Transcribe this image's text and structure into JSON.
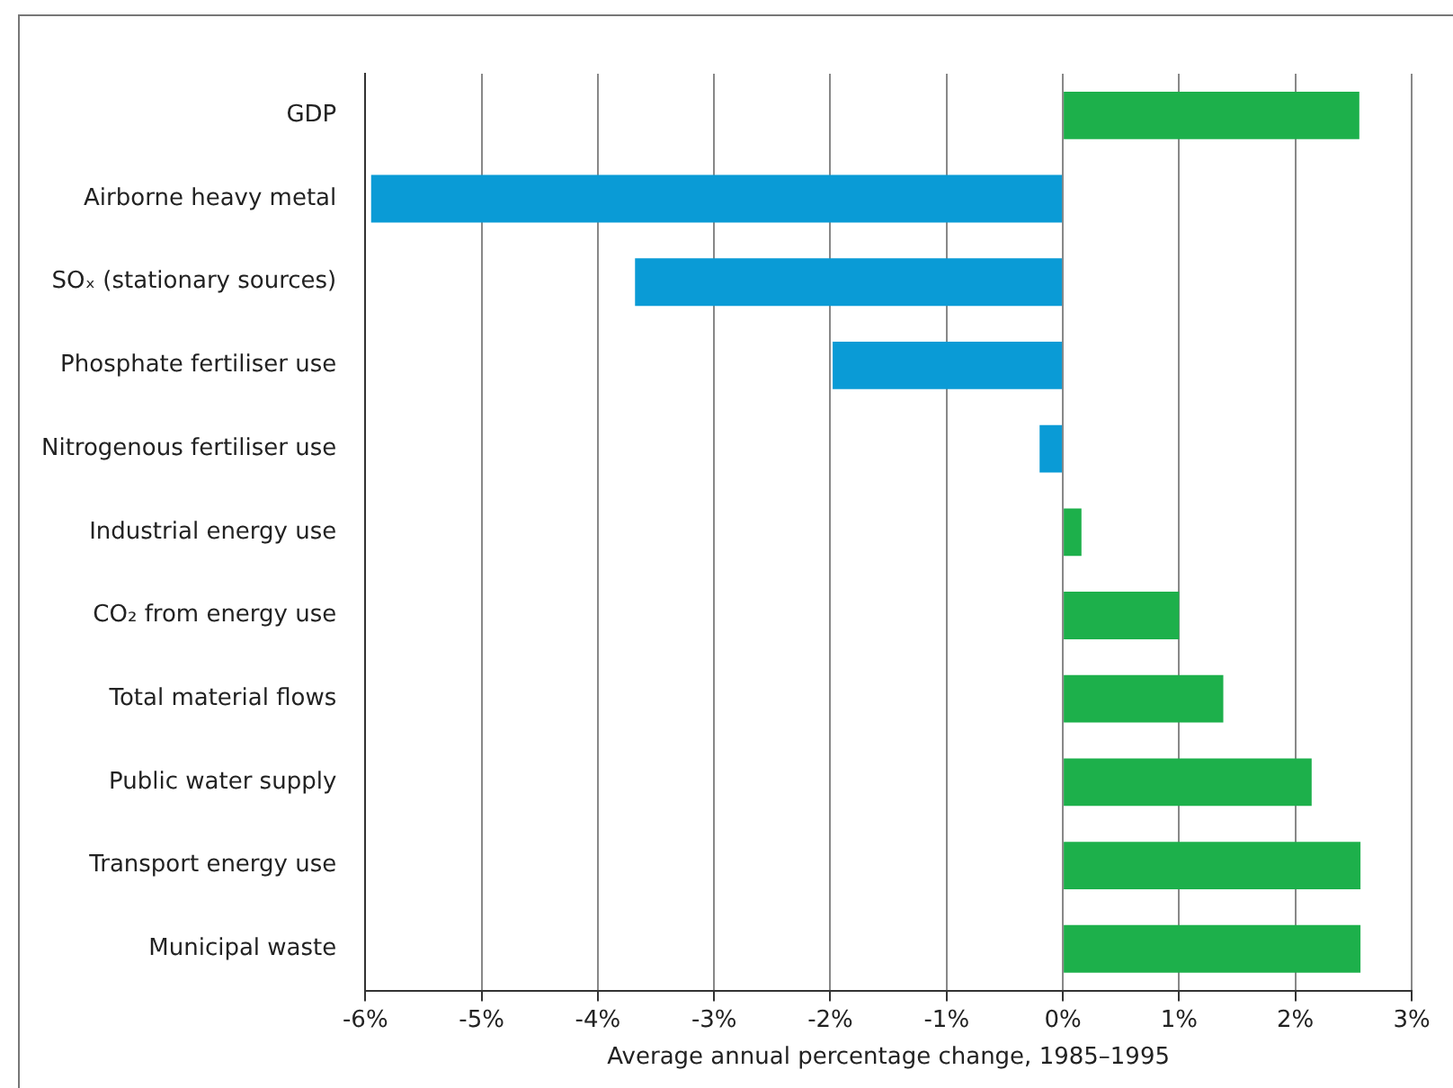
{
  "chart_data": {
    "type": "bar",
    "orientation": "horizontal",
    "categories": [
      "GDP",
      "Airborne heavy metal",
      "SOₓ (stationary sources)",
      "Phosphate fertiliser use",
      "Nitrogenous fertiliser use",
      "Industrial energy use",
      "CO₂ from energy use",
      "Total material flows",
      "Public water supply",
      "Transport energy use",
      "Municipal waste"
    ],
    "values": [
      2.55,
      -5.95,
      -3.68,
      -1.98,
      -0.2,
      0.16,
      1.0,
      1.38,
      2.14,
      2.56,
      2.56
    ],
    "colors": [
      "#1db04b",
      "#0a9bd6",
      "#0a9bd6",
      "#0a9bd6",
      "#0a9bd6",
      "#1db04b",
      "#1db04b",
      "#1db04b",
      "#1db04b",
      "#1db04b",
      "#1db04b"
    ],
    "xlabel": "Average annual percentage change, 1985–1995",
    "xlim": [
      -6,
      3
    ],
    "xticks": [
      {
        "value": -6,
        "label": "-6%"
      },
      {
        "value": -5,
        "label": "-5%"
      },
      {
        "value": -4,
        "label": "-4%"
      },
      {
        "value": -3,
        "label": "-3%"
      },
      {
        "value": -2,
        "label": "-2%"
      },
      {
        "value": -1,
        "label": "-1%"
      },
      {
        "value": 0,
        "label": "0%"
      },
      {
        "value": 1,
        "label": "1%"
      },
      {
        "value": 2,
        "label": "2%"
      },
      {
        "value": 3,
        "label": "3%"
      }
    ],
    "grid": "x",
    "legend": false
  }
}
